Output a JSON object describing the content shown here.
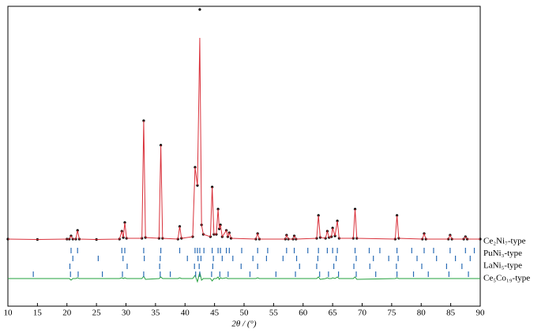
{
  "chart_data": {
    "type": "xrd",
    "x_label": "2θ / (°)",
    "xlim": [
      10,
      90
    ],
    "xticks": [
      10,
      15,
      20,
      25,
      30,
      35,
      40,
      45,
      50,
      55,
      60,
      65,
      70,
      75,
      80,
      85,
      90
    ],
    "ylim": [
      -83,
      297
    ],
    "x": [
      10,
      15,
      20,
      20.4,
      20.7,
      21.0,
      21.5,
      21.8,
      22.1,
      25,
      28.9,
      29.3,
      29.55,
      29.8,
      30.1,
      32.7,
      33.0,
      33.3,
      35.6,
      35.9,
      36.2,
      38.8,
      39.1,
      39.4,
      41.3,
      41.7,
      42.1,
      42.5,
      42.8,
      43.1,
      44.3,
      44.6,
      44.9,
      45.3,
      45.6,
      45.8,
      46.0,
      46.3,
      47.0,
      47.25,
      47.5,
      47.8,
      52.0,
      52.3,
      52.6,
      57.0,
      57.2,
      57.5,
      58.3,
      58.5,
      58.8,
      62.3,
      62.6,
      62.9,
      63.8,
      64.1,
      64.4,
      64.8,
      65.0,
      65.4,
      65.8,
      66.1,
      68.5,
      68.8,
      69.1,
      75.6,
      75.9,
      76.2,
      80.2,
      80.5,
      80.8,
      84.6,
      84.9,
      85.2,
      87.2,
      87.5,
      87.8,
      90
    ],
    "series": [
      {
        "color": "#000000",
        "style": "markers",
        "values": [
          2,
          1.5,
          2,
          2,
          6,
          2,
          2,
          13,
          2,
          1.5,
          2,
          12,
          4,
          23,
          3,
          3,
          152,
          4,
          3,
          121,
          3,
          2,
          18,
          3,
          5,
          93,
          70,
          293,
          20,
          8,
          5,
          68,
          8,
          8,
          40,
          15,
          20,
          5,
          13,
          5,
          10,
          3,
          2,
          9,
          2,
          2,
          7,
          2,
          2,
          6,
          2,
          3,
          32,
          4,
          3,
          12,
          4,
          5,
          16,
          6,
          25,
          3,
          3,
          40,
          3,
          2,
          32,
          3,
          2,
          9,
          2,
          2,
          7,
          2,
          2,
          5,
          2,
          2
        ]
      },
      {
        "color": "#d9303a",
        "style": "line",
        "values": [
          2,
          1.5,
          2,
          2,
          6,
          2,
          2,
          13,
          2,
          1.5,
          2,
          12,
          4,
          23,
          3,
          3,
          152,
          4,
          3,
          121,
          3,
          2,
          18,
          3,
          5,
          93,
          70,
          257,
          20,
          8,
          5,
          68,
          8,
          8,
          40,
          15,
          20,
          5,
          13,
          5,
          10,
          3,
          2,
          9,
          2,
          2,
          7,
          2,
          2,
          6,
          2,
          3,
          32,
          4,
          3,
          12,
          4,
          5,
          16,
          6,
          25,
          3,
          3,
          40,
          3,
          2,
          32,
          3,
          2,
          9,
          2,
          2,
          7,
          2,
          2,
          5,
          2,
          2
        ]
      },
      {
        "color": "#22a03c",
        "style": "line",
        "values": [
          -48,
          -48,
          -48,
          -48,
          -50,
          -48,
          -48,
          -47,
          -48,
          -48,
          -48,
          -47,
          -48,
          -47,
          -48,
          -48,
          -45,
          -49,
          -48,
          -46,
          -48,
          -48,
          -47,
          -48,
          -48,
          -44,
          -52,
          -40,
          -50,
          -48,
          -48,
          -51,
          -48,
          -48,
          -46,
          -49,
          -47,
          -48,
          -47,
          -48,
          -48,
          -48,
          -48,
          -47,
          -48,
          -48,
          -48,
          -48,
          -48,
          -48,
          -48,
          -48,
          -46,
          -49,
          -48,
          -47,
          -48,
          -48,
          -47,
          -48,
          -46,
          -48,
          -48,
          -46,
          -49,
          -48,
          -47,
          -48,
          -48,
          -48,
          -48,
          -48,
          -48,
          -48,
          -48,
          -48,
          -48,
          -48
        ]
      }
    ],
    "tick_color": "#2a6cb5",
    "phases": [
      {
        "name": "Ce₂Ni₇-type",
        "positions": [
          20.7,
          21.8,
          29.3,
          29.8,
          33.0,
          35.9,
          39.1,
          41.7,
          42.1,
          42.5,
          43.2,
          44.6,
          45.6,
          46.0,
          47.0,
          47.5,
          49.6,
          52.3,
          54.0,
          57.2,
          58.5,
          60.8,
          62.6,
          64.1,
          65.0,
          65.8,
          68.8,
          71.2,
          73.0,
          75.9,
          78.4,
          80.5,
          82.1,
          84.9,
          87.5,
          89.0
        ]
      },
      {
        "name": "PuNi₃-type",
        "positions": [
          21.0,
          25.3,
          29.5,
          33.1,
          35.8,
          40.4,
          42.2,
          42.7,
          44.8,
          46.3,
          48.1,
          51.5,
          53.8,
          56.6,
          58.9,
          62.5,
          65.6,
          69.0,
          71.9,
          74.5,
          76.1,
          79.3,
          82.6,
          85.8,
          88.3
        ]
      },
      {
        "name": "LaNi₅-type",
        "positions": [
          20.5,
          30.2,
          35.7,
          41.6,
          42.4,
          44.7,
          49.5,
          52.3,
          59.4,
          62.3,
          65.2,
          68.6,
          71.3,
          75.8,
          80.1,
          84.3,
          86.9
        ]
      },
      {
        "name": "Ce₅Co₁₉-type",
        "positions": [
          14.3,
          20.6,
          21.9,
          26.0,
          29.4,
          33.0,
          35.8,
          37.5,
          41.8,
          42.5,
          44.5,
          45.9,
          47.3,
          51.0,
          55.4,
          58.7,
          62.8,
          64.3,
          66.0,
          69.0,
          72.3,
          75.9,
          78.7,
          81.2,
          84.7,
          88.0
        ]
      }
    ]
  }
}
